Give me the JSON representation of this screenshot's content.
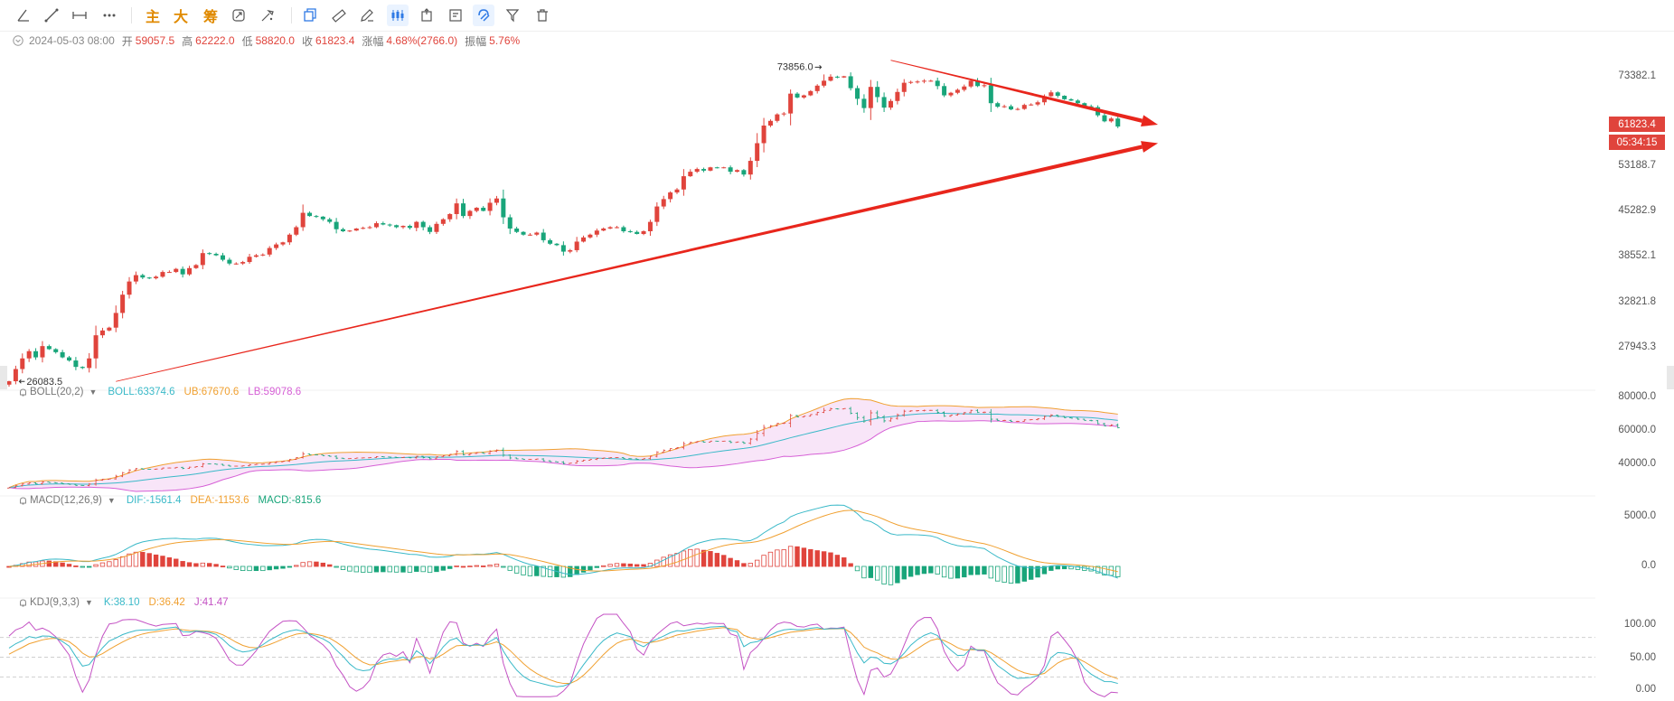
{
  "toolbar": {
    "items": [
      {
        "name": "angle-tool-icon"
      },
      {
        "name": "trend-line-icon"
      },
      {
        "name": "horizontal-ray-icon"
      },
      {
        "name": "more-dots-icon"
      },
      {
        "name": "zhu-label",
        "text": "主"
      },
      {
        "name": "da-label",
        "text": "大"
      },
      {
        "name": "chou-label",
        "text": "筹"
      },
      {
        "name": "cycle-icon"
      },
      {
        "name": "brush-icon"
      },
      {
        "name": "copy-icon"
      },
      {
        "name": "ruler-icon"
      },
      {
        "name": "pen-icon"
      },
      {
        "name": "candles-icon"
      },
      {
        "name": "marker-icon"
      },
      {
        "name": "note-icon"
      },
      {
        "name": "magnet-icon"
      },
      {
        "name": "filter-icon"
      },
      {
        "name": "trash-icon"
      }
    ]
  },
  "info": {
    "datetime": "2024-05-03 08:00",
    "open_label": "开",
    "open": "59057.5",
    "high_label": "高",
    "high": "62222.0",
    "low_label": "低",
    "low": "58820.0",
    "close_label": "收",
    "close": "61823.4",
    "change_label": "涨幅",
    "change": "4.68%(2766.0)",
    "amp_label": "振幅",
    "amp": "5.76%"
  },
  "boll": {
    "name": "BOLL(20,2)",
    "mid": "BOLL:63374.6",
    "ub": "UB:67670.6",
    "lb": "LB:59078.6"
  },
  "macd": {
    "name": "MACD(12,26,9)",
    "dif": "DIF:-1561.4",
    "dea": "DEA:-1153.6",
    "macd": "MACD:-815.6"
  },
  "kdj": {
    "name": "KDJ(9,3,3)",
    "k": "K:38.10",
    "d": "D:36.42",
    "j": "J:41.47"
  },
  "price_axis": [
    "73382.1",
    "53188.7",
    "45282.9",
    "38552.1",
    "32821.8",
    "27943.3"
  ],
  "boll_axis": [
    "80000.0",
    "60000.0",
    "40000.0"
  ],
  "macd_axis": [
    "5000.0",
    "0.0"
  ],
  "kdj_axis": [
    "100.00",
    "50.00",
    "0.00"
  ],
  "last_price_tag": "61823.4",
  "countdown_tag": "05:34:15",
  "colors": {
    "up": "#e0443c",
    "down": "#18a57a",
    "boll_mid": "#3ab9c8",
    "boll_ub": "#f0a030",
    "boll_lb": "#d660d6",
    "k": "#3ab9c8",
    "d": "#f0a030",
    "j": "#c452c4",
    "annotation": "#e8261c"
  },
  "chart_data": {
    "type": "candlestick",
    "markers": {
      "high": "73856.0",
      "low": "26083.5"
    },
    "price_axis": {
      "scale": "log",
      "ticks": [
        73382.1,
        53188.7,
        45282.9,
        38552.1,
        32821.8,
        27943.3
      ]
    },
    "closes": [
      26100,
      27200,
      28200,
      28900,
      28300,
      29400,
      29100,
      28800,
      28300,
      28000,
      27400,
      27300,
      28200,
      30500,
      31000,
      31300,
      32900,
      35000,
      36600,
      37400,
      37100,
      37000,
      37200,
      37800,
      37800,
      38200,
      37500,
      38300,
      38700,
      40300,
      40200,
      40000,
      39400,
      38900,
      38900,
      39100,
      39800,
      40000,
      40100,
      41000,
      41500,
      41800,
      42900,
      44000,
      46200,
      45700,
      45600,
      45200,
      44800,
      43700,
      43400,
      43500,
      43800,
      43900,
      44000,
      44600,
      44400,
      44300,
      44000,
      44200,
      43900,
      44800,
      44000,
      43300,
      44500,
      45200,
      46000,
      47700,
      45700,
      46500,
      47000,
      46500,
      47800,
      48500,
      45500,
      43800,
      43300,
      42900,
      42900,
      43200,
      42100,
      41600,
      41400,
      40500,
      40700,
      41900,
      42500,
      42900,
      43500,
      43800,
      44000,
      44000,
      43400,
      43300,
      43000,
      43400,
      44800,
      47200,
      48400,
      49500,
      50000,
      52300,
      53100,
      53600,
      53300,
      53900,
      53800,
      53900,
      53100,
      53400,
      52600,
      55100,
      58500,
      62100,
      63100,
      64500,
      64700,
      69200,
      68300,
      68800,
      69800,
      71100,
      72300,
      73300,
      73100,
      73400,
      70500,
      68000,
      65900,
      70800,
      68400,
      66000,
      67500,
      69600,
      71800,
      72000,
      72100,
      72300,
      72300,
      71000,
      68800,
      69400,
      70100,
      70900,
      72300,
      71000,
      71200,
      67000,
      66200,
      66300,
      65600,
      65700,
      66600,
      66700,
      67200,
      68600,
      69500,
      68700,
      67900,
      67600,
      67000,
      66300,
      66100,
      64300,
      63000,
      63600,
      61900
    ],
    "boll": {
      "mid": 63374.6,
      "ub": 67670.6,
      "lb": 59078.6,
      "axis": [
        80000,
        60000,
        40000
      ]
    },
    "macd": {
      "dif": -1561.4,
      "dea": -1153.6,
      "macd": -815.6,
      "axis": [
        5000,
        0
      ]
    },
    "kdj": {
      "k": 38.1,
      "d": 36.42,
      "j": 41.47,
      "axis": [
        100,
        50,
        0
      ]
    },
    "annotations": [
      {
        "type": "arrow",
        "from": {
          "i": 16,
          "price": 26083.5
        },
        "to": {
          "i": 172,
          "price": 58500
        }
      },
      {
        "type": "arrow",
        "from": {
          "i": 132,
          "price": 77500
        },
        "to": {
          "i": 172,
          "price": 62300
        }
      }
    ]
  }
}
